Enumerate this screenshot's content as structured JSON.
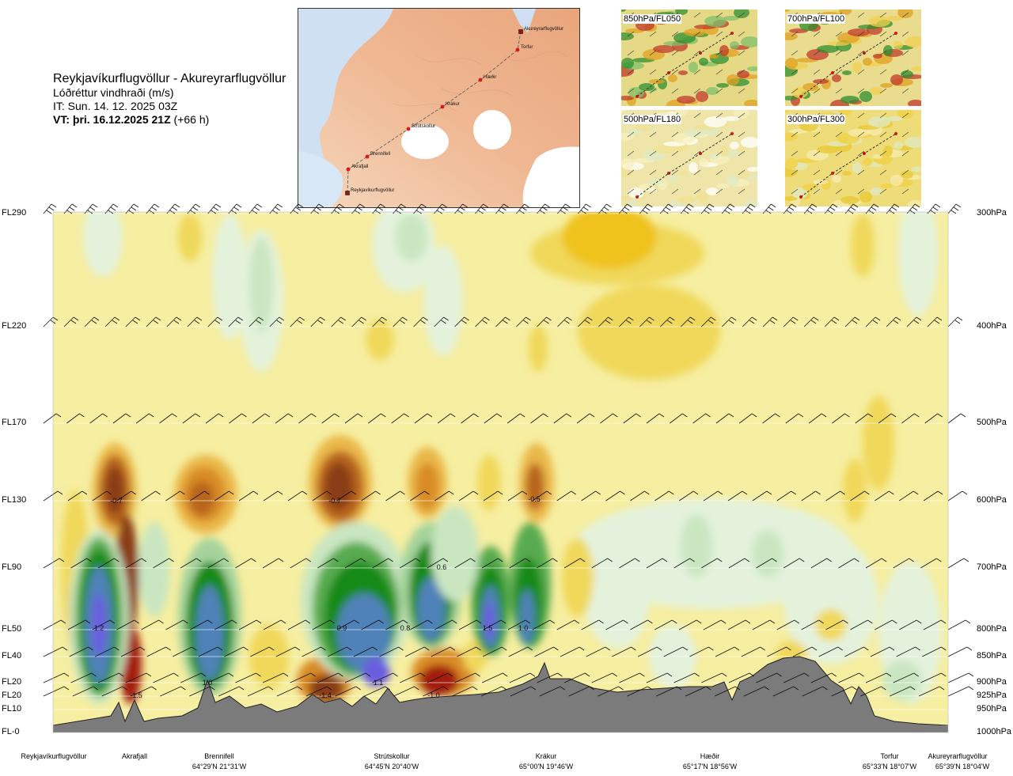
{
  "header": {
    "route": "Reykjavíkurflugvöllur - Akureyrarflugvöllur",
    "parameter": "Lóðréttur vindhraði (m/s)",
    "it": "IT: Sun. 14. 12. 2025 03Z",
    "vt_bold": "VT: þri. 16.12.2025 21Z",
    "vt_offset": "(+66 h)"
  },
  "map": {
    "waypoints": [
      {
        "name": "Akureyrarflugvöllur",
        "type": "airport"
      },
      {
        "name": "Torfur",
        "type": "point"
      },
      {
        "name": "Hæðir",
        "type": "point"
      },
      {
        "name": "Krákur",
        "type": "point"
      },
      {
        "name": "Strútskollur",
        "type": "point"
      },
      {
        "name": "Brennifell",
        "type": "point"
      },
      {
        "name": "Akrafjall",
        "type": "point"
      },
      {
        "name": "Reykjavíkurflugvöllur",
        "type": "airport"
      }
    ]
  },
  "mini_maps": [
    {
      "label": "850hPa/FL050"
    },
    {
      "label": "700hPa/FL100"
    },
    {
      "label": "500hPa/FL180"
    },
    {
      "label": "300hPa/FL300"
    }
  ],
  "chart_data": {
    "type": "heatmap",
    "title": "Reykjavíkurflugvöllur - Akureyrarflugvöllur",
    "subtitle": "Lóðréttur vindhraði (m/s)",
    "colormap": {
      "negative": [
        "#f6eea0",
        "#f0d85a",
        "#eab84a",
        "#d98c28",
        "#b8651a",
        "#8a3d14",
        "#a31a0c"
      ],
      "positive": [
        "#e4f2dc",
        "#c9e6c1",
        "#a5d39b",
        "#59ab50",
        "#138a13",
        "#4f82b8",
        "#6a5de0"
      ]
    },
    "y_axis_left": [
      "FL290",
      "FL220",
      "FL170",
      "FL130",
      "FL90",
      "FL50",
      "FL40",
      "FL20",
      "FL20",
      "FL10",
      "FL-0"
    ],
    "y_axis_right": [
      "300hPa",
      "400hPa",
      "500hPa",
      "600hPa",
      "700hPa",
      "800hPa",
      "850hPa",
      "900hPa",
      "925hPa",
      "950hPa",
      "1000hPa"
    ],
    "pressure_levels_hpa": [
      300,
      400,
      500,
      600,
      700,
      800,
      850,
      900,
      925,
      950,
      1000
    ],
    "x_locations": [
      {
        "name": "Reykjavíkurflugvöllur",
        "coord": ""
      },
      {
        "name": "Akrafjall",
        "coord": ""
      },
      {
        "name": "Brennifell",
        "coord": "64°29'N 21°31'W"
      },
      {
        "name": "Strútskollur",
        "coord": "64°45'N 20°40'W"
      },
      {
        "name": "Krákur",
        "coord": "65°00'N 19°46'W"
      },
      {
        "name": "Hæðir",
        "coord": "65°17'N 18°56'W"
      },
      {
        "name": "Torfur",
        "coord": "65°33'N 18°07'W"
      },
      {
        "name": "Akureyrarflugvöllur",
        "coord": "65°39'N 18°04'W"
      }
    ],
    "value_labels": [
      {
        "text": "-0.7",
        "value": -0.7,
        "pressure_hpa": 600,
        "near": "Akrafjall"
      },
      {
        "text": "-0.7",
        "value": -0.7,
        "pressure_hpa": 600,
        "near": "Strútskollur"
      },
      {
        "text": "-0.5",
        "value": -0.5,
        "pressure_hpa": 600,
        "near": "Krákur"
      },
      {
        "text": "0.6",
        "value": 0.6,
        "pressure_hpa": 700,
        "near": "Strútskollur"
      },
      {
        "text": "1.2",
        "value": 1.2,
        "pressure_hpa": 800,
        "near": "Reykjavíkurflugvöllur"
      },
      {
        "text": "0.9",
        "value": 0.9,
        "pressure_hpa": 800,
        "near": "Strútskollur"
      },
      {
        "text": "0.8",
        "value": 0.8,
        "pressure_hpa": 800,
        "near": "Strútskollur"
      },
      {
        "text": "1.5",
        "value": 1.5,
        "pressure_hpa": 800,
        "near": "Krákur"
      },
      {
        "text": "1.0",
        "value": 1.0,
        "pressure_hpa": 800,
        "near": "Krákur"
      },
      {
        "text": "1.0",
        "value": 1.0,
        "pressure_hpa": 900,
        "near": "Brennifell"
      },
      {
        "text": "1.1",
        "value": 1.1,
        "pressure_hpa": 900,
        "near": "Strútskollur"
      },
      {
        "text": "-1.5",
        "value": -1.5,
        "pressure_hpa": 930,
        "near": "Akrafjall"
      },
      {
        "text": "-1.4",
        "value": -1.4,
        "pressure_hpa": 930,
        "near": "Strútskollur"
      },
      {
        "text": "-1.0",
        "value": -1.0,
        "pressure_hpa": 930,
        "near": "Strútskollur"
      }
    ],
    "grid": true,
    "terrain": true,
    "wind_barbs": true
  }
}
